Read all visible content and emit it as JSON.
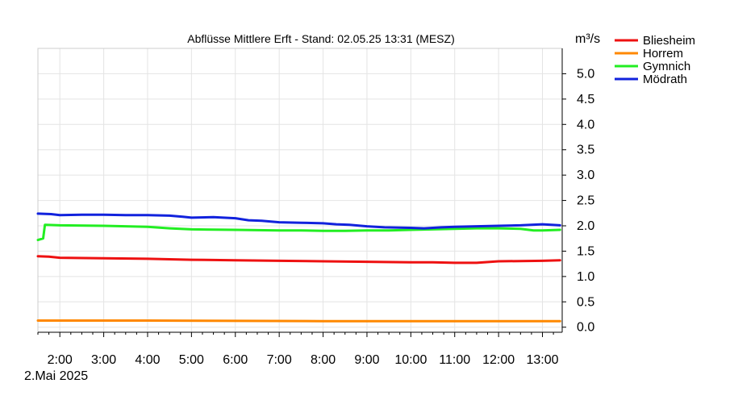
{
  "chart_data": {
    "type": "line",
    "title": "Abflüsse Mittlere Erft - Stand: 02.05.25 13:31 (MESZ)",
    "ylabel": "m³/s",
    "date_label": "2.Mai 2025",
    "ylim": [
      -0.1,
      5.5
    ],
    "xlim": [
      1.5,
      13.45
    ],
    "grid": true,
    "legend_position": "top-right",
    "y_ticks": [
      "0.0",
      "0.5",
      "1.0",
      "1.5",
      "2.0",
      "2.5",
      "3.0",
      "3.5",
      "4.0",
      "4.5",
      "5.0"
    ],
    "x_ticks": [
      {
        "value": 2,
        "label": "2:00"
      },
      {
        "value": 3,
        "label": "3:00"
      },
      {
        "value": 4,
        "label": "4:00"
      },
      {
        "value": 5,
        "label": "5:00"
      },
      {
        "value": 6,
        "label": "6:00"
      },
      {
        "value": 7,
        "label": "7:00"
      },
      {
        "value": 8,
        "label": "8:00"
      },
      {
        "value": 9,
        "label": "9:00"
      },
      {
        "value": 10,
        "label": "10:00"
      },
      {
        "value": 11,
        "label": "11:00"
      },
      {
        "value": 12,
        "label": "12:00"
      },
      {
        "value": 13,
        "label": "13:00"
      }
    ],
    "series": [
      {
        "name": "Bliesheim",
        "color": "#ee1111",
        "x": [
          1.5,
          1.75,
          2.0,
          3.0,
          4.0,
          4.5,
          5.0,
          6.0,
          7.0,
          8.0,
          9.0,
          10.0,
          10.5,
          11.0,
          11.5,
          12.0,
          13.0,
          13.4
        ],
        "y": [
          1.4,
          1.39,
          1.37,
          1.36,
          1.35,
          1.34,
          1.33,
          1.32,
          1.31,
          1.3,
          1.29,
          1.28,
          1.28,
          1.27,
          1.27,
          1.3,
          1.31,
          1.32
        ]
      },
      {
        "name": "Horrem",
        "color": "#ff8800",
        "x": [
          1.5,
          4.0,
          8.0,
          12.0,
          13.4
        ],
        "y": [
          0.13,
          0.13,
          0.12,
          0.12,
          0.12
        ]
      },
      {
        "name": "Gymnich",
        "color": "#22ee22",
        "x": [
          1.5,
          1.62,
          1.66,
          2.0,
          3.0,
          4.0,
          4.5,
          5.0,
          6.0,
          7.0,
          7.5,
          8.0,
          8.5,
          9.0,
          9.5,
          10.0,
          10.5,
          11.0,
          11.5,
          12.0,
          12.5,
          12.8,
          13.0,
          13.4
        ],
        "y": [
          1.72,
          1.75,
          2.02,
          2.01,
          2.0,
          1.98,
          1.95,
          1.93,
          1.92,
          1.91,
          1.91,
          1.9,
          1.9,
          1.91,
          1.91,
          1.92,
          1.93,
          1.94,
          1.95,
          1.95,
          1.94,
          1.91,
          1.91,
          1.92
        ]
      },
      {
        "name": "Mödrath",
        "color": "#1122dd",
        "x": [
          1.5,
          1.8,
          2.0,
          2.5,
          3.0,
          3.5,
          4.0,
          4.5,
          4.8,
          5.0,
          5.5,
          6.0,
          6.3,
          6.6,
          7.0,
          7.5,
          8.0,
          8.3,
          8.6,
          9.0,
          9.4,
          10.0,
          10.3,
          10.7,
          11.0,
          11.5,
          12.0,
          12.5,
          13.0,
          13.2,
          13.4
        ],
        "y": [
          2.24,
          2.23,
          2.21,
          2.22,
          2.22,
          2.21,
          2.21,
          2.2,
          2.18,
          2.16,
          2.17,
          2.15,
          2.11,
          2.1,
          2.07,
          2.06,
          2.05,
          2.03,
          2.02,
          1.99,
          1.97,
          1.96,
          1.95,
          1.97,
          1.98,
          1.99,
          2.0,
          2.01,
          2.03,
          2.02,
          2.01
        ]
      }
    ]
  }
}
